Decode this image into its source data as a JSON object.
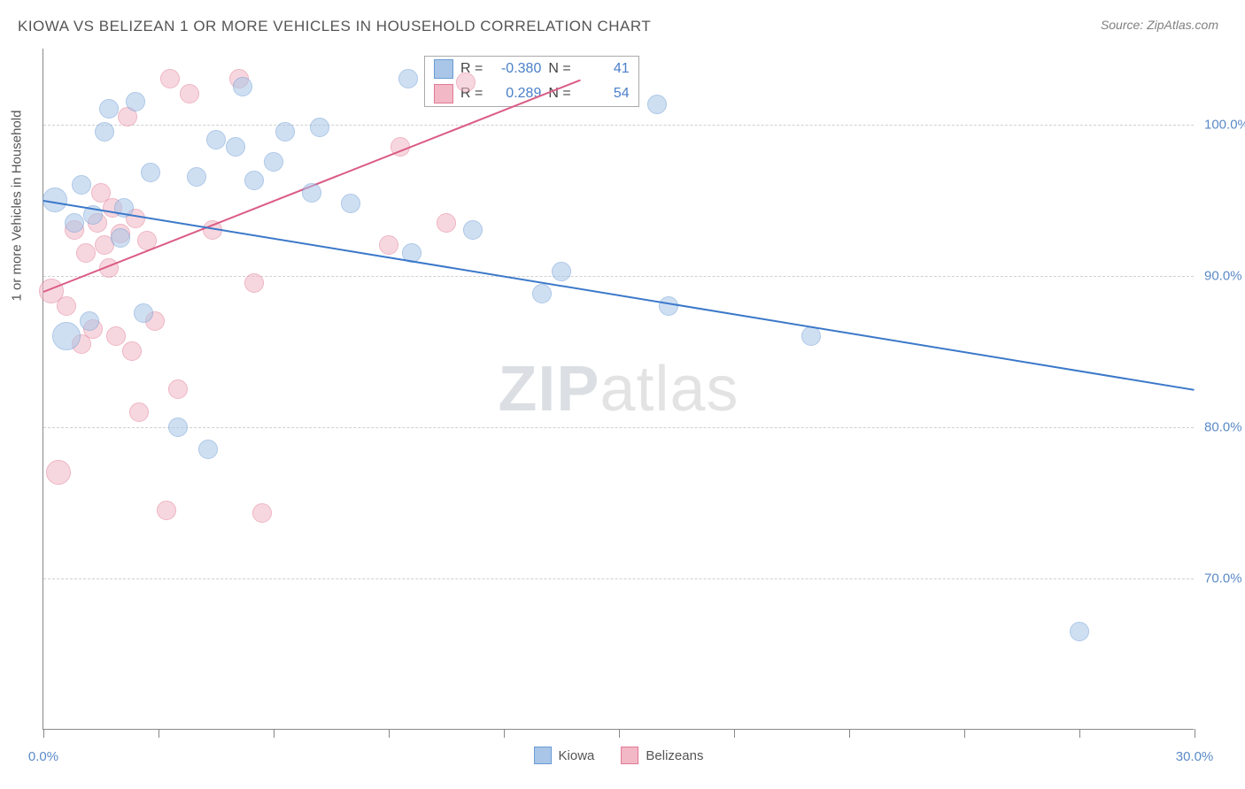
{
  "chart": {
    "title": "KIOWA VS BELIZEAN 1 OR MORE VEHICLES IN HOUSEHOLD CORRELATION CHART",
    "source": "Source: ZipAtlas.com",
    "type": "scatter",
    "background_color": "#ffffff",
    "grid_color": "#d0d0d0",
    "axis_color": "#888888",
    "watermark_zip": "ZIP",
    "watermark_atlas": "atlas",
    "y_axis_label": "1 or more Vehicles in Household",
    "xlim": [
      0,
      30
    ],
    "ylim": [
      60,
      105
    ],
    "y_ticks": [
      {
        "value": 70,
        "label": "70.0%"
      },
      {
        "value": 80,
        "label": "80.0%"
      },
      {
        "value": 90,
        "label": "90.0%"
      },
      {
        "value": 100,
        "label": "100.0%"
      }
    ],
    "x_ticks": [
      {
        "value": 0,
        "label": "0.0%"
      },
      {
        "value": 3,
        "label": ""
      },
      {
        "value": 6,
        "label": ""
      },
      {
        "value": 9,
        "label": ""
      },
      {
        "value": 12,
        "label": ""
      },
      {
        "value": 15,
        "label": ""
      },
      {
        "value": 18,
        "label": ""
      },
      {
        "value": 21,
        "label": ""
      },
      {
        "value": 24,
        "label": ""
      },
      {
        "value": 27,
        "label": ""
      },
      {
        "value": 30,
        "label": "30.0%"
      }
    ],
    "series": {
      "kiowa": {
        "label": "Kiowa",
        "fill_color": "#a9c6e8",
        "border_color": "#6a9bd4",
        "fill_opacity": 0.55,
        "marker_radius": 11,
        "R": "-0.380",
        "N": "41",
        "trend": {
          "x1": 0,
          "y1": 95.0,
          "x2": 30,
          "y2": 82.5,
          "color": "#3b78c9",
          "width": 2
        },
        "points": [
          {
            "x": 0.3,
            "y": 95.0,
            "r": 14
          },
          {
            "x": 0.8,
            "y": 93.5,
            "r": 11
          },
          {
            "x": 1.0,
            "y": 96.0,
            "r": 11
          },
          {
            "x": 1.3,
            "y": 94.0,
            "r": 11
          },
          {
            "x": 1.2,
            "y": 87.0,
            "r": 11
          },
          {
            "x": 0.6,
            "y": 86.0,
            "r": 16
          },
          {
            "x": 1.6,
            "y": 99.5,
            "r": 11
          },
          {
            "x": 1.7,
            "y": 101.0,
            "r": 11
          },
          {
            "x": 2.0,
            "y": 92.5,
            "r": 11
          },
          {
            "x": 2.1,
            "y": 94.5,
            "r": 11
          },
          {
            "x": 2.4,
            "y": 101.5,
            "r": 11
          },
          {
            "x": 2.6,
            "y": 87.5,
            "r": 11
          },
          {
            "x": 2.8,
            "y": 96.8,
            "r": 11
          },
          {
            "x": 3.5,
            "y": 80.0,
            "r": 11
          },
          {
            "x": 4.0,
            "y": 96.5,
            "r": 11
          },
          {
            "x": 4.3,
            "y": 78.5,
            "r": 11
          },
          {
            "x": 4.5,
            "y": 99.0,
            "r": 11
          },
          {
            "x": 5.0,
            "y": 98.5,
            "r": 11
          },
          {
            "x": 5.2,
            "y": 102.5,
            "r": 11
          },
          {
            "x": 5.5,
            "y": 96.3,
            "r": 11
          },
          {
            "x": 6.0,
            "y": 97.5,
            "r": 11
          },
          {
            "x": 6.3,
            "y": 99.5,
            "r": 11
          },
          {
            "x": 7.0,
            "y": 95.5,
            "r": 11
          },
          {
            "x": 7.2,
            "y": 99.8,
            "r": 11
          },
          {
            "x": 8.0,
            "y": 94.8,
            "r": 11
          },
          {
            "x": 9.5,
            "y": 103.0,
            "r": 11
          },
          {
            "x": 9.6,
            "y": 91.5,
            "r": 11
          },
          {
            "x": 11.2,
            "y": 93.0,
            "r": 11
          },
          {
            "x": 13.0,
            "y": 88.8,
            "r": 11
          },
          {
            "x": 13.5,
            "y": 90.3,
            "r": 11
          },
          {
            "x": 16.0,
            "y": 101.3,
            "r": 11
          },
          {
            "x": 16.3,
            "y": 88.0,
            "r": 11
          },
          {
            "x": 20.0,
            "y": 86.0,
            "r": 11
          },
          {
            "x": 27.0,
            "y": 66.5,
            "r": 11
          }
        ]
      },
      "belizeans": {
        "label": "Belizeans",
        "fill_color": "#f2b8c6",
        "border_color": "#e07a94",
        "fill_opacity": 0.55,
        "marker_radius": 11,
        "R": "0.289",
        "N": "54",
        "trend": {
          "x1": 0,
          "y1": 89.0,
          "x2": 14,
          "y2": 103.0,
          "color": "#db5b84",
          "width": 2
        },
        "points": [
          {
            "x": 0.2,
            "y": 89.0,
            "r": 14
          },
          {
            "x": 0.4,
            "y": 77.0,
            "r": 14
          },
          {
            "x": 0.6,
            "y": 88.0,
            "r": 11
          },
          {
            "x": 0.8,
            "y": 93.0,
            "r": 11
          },
          {
            "x": 1.0,
            "y": 85.5,
            "r": 11
          },
          {
            "x": 1.1,
            "y": 91.5,
            "r": 11
          },
          {
            "x": 1.3,
            "y": 86.5,
            "r": 11
          },
          {
            "x": 1.4,
            "y": 93.5,
            "r": 11
          },
          {
            "x": 1.5,
            "y": 95.5,
            "r": 11
          },
          {
            "x": 1.6,
            "y": 92.0,
            "r": 11
          },
          {
            "x": 1.7,
            "y": 90.5,
            "r": 11
          },
          {
            "x": 1.8,
            "y": 94.5,
            "r": 11
          },
          {
            "x": 1.9,
            "y": 86.0,
            "r": 11
          },
          {
            "x": 2.0,
            "y": 92.8,
            "r": 11
          },
          {
            "x": 2.2,
            "y": 100.5,
            "r": 11
          },
          {
            "x": 2.3,
            "y": 85.0,
            "r": 11
          },
          {
            "x": 2.4,
            "y": 93.8,
            "r": 11
          },
          {
            "x": 2.5,
            "y": 81.0,
            "r": 11
          },
          {
            "x": 2.7,
            "y": 92.3,
            "r": 11
          },
          {
            "x": 2.9,
            "y": 87.0,
            "r": 11
          },
          {
            "x": 3.2,
            "y": 74.5,
            "r": 11
          },
          {
            "x": 3.3,
            "y": 103.0,
            "r": 11
          },
          {
            "x": 3.5,
            "y": 82.5,
            "r": 11
          },
          {
            "x": 3.8,
            "y": 102.0,
            "r": 11
          },
          {
            "x": 4.4,
            "y": 93.0,
            "r": 11
          },
          {
            "x": 5.1,
            "y": 103.0,
            "r": 11
          },
          {
            "x": 5.5,
            "y": 89.5,
            "r": 11
          },
          {
            "x": 5.7,
            "y": 74.3,
            "r": 11
          },
          {
            "x": 9.0,
            "y": 92.0,
            "r": 11
          },
          {
            "x": 9.3,
            "y": 98.5,
            "r": 11
          },
          {
            "x": 10.5,
            "y": 93.5,
            "r": 11
          },
          {
            "x": 11.0,
            "y": 102.8,
            "r": 11
          }
        ]
      }
    },
    "stats_box": {
      "R_prefix": "R =",
      "N_prefix": "N ="
    }
  }
}
